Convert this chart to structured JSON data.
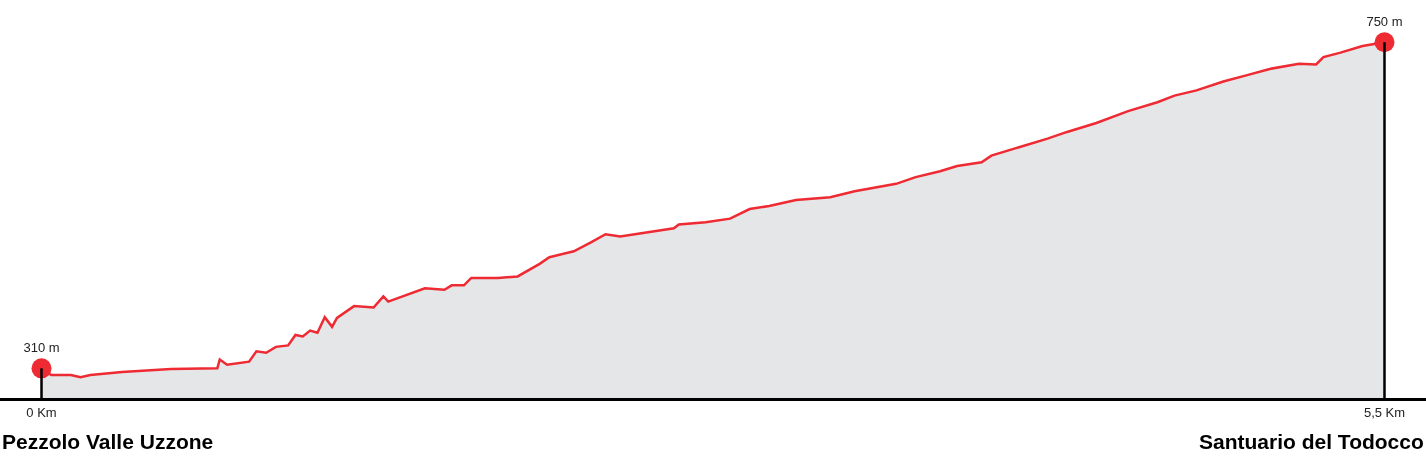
{
  "chart_data": {
    "type": "area",
    "x": [
      0,
      0.04,
      0.12,
      0.16,
      0.2,
      0.33,
      0.53,
      0.72,
      0.73,
      0.76,
      0.85,
      0.88,
      0.92,
      0.96,
      1.01,
      1.04,
      1.07,
      1.1,
      1.13,
      1.16,
      1.19,
      1.21,
      1.28,
      1.36,
      1.4,
      1.42,
      1.57,
      1.65,
      1.68,
      1.73,
      1.76,
      1.84,
      1.87,
      1.95,
      2.04,
      2.08,
      2.18,
      2.25,
      2.31,
      2.37,
      2.59,
      2.61,
      2.72,
      2.82,
      2.9,
      2.98,
      3.09,
      3.23,
      3.33,
      3.5,
      3.58,
      3.68,
      3.75,
      3.85,
      3.89,
      4.01,
      4.12,
      4.2,
      4.32,
      4.45,
      4.57,
      4.64,
      4.73,
      4.84,
      4.93,
      5.03,
      5.15,
      5.22,
      5.25,
      5.32,
      5.41,
      5.5
    ],
    "series": [
      {
        "color": "#ee2a33",
        "values": [
          310,
          301,
          301,
          298,
          301,
          305,
          309,
          310,
          322,
          315,
          319,
          333,
          331,
          339,
          341,
          355,
          353,
          361,
          358,
          379,
          366,
          378,
          394,
          392,
          407,
          400,
          418,
          416,
          422,
          422,
          432,
          432,
          432,
          434,
          451,
          460,
          468,
          480,
          491,
          488,
          499,
          504,
          507,
          512,
          525,
          529,
          537,
          541,
          549,
          559,
          568,
          576,
          583,
          588,
          597,
          609,
          620,
          629,
          641,
          657,
          669,
          678,
          685,
          697,
          705,
          714,
          721,
          720,
          730,
          736,
          745,
          750
        ],
        "value_labels": [
          "310 m",
          null,
          null,
          null,
          null,
          null,
          null,
          null,
          null,
          null,
          null,
          null,
          null,
          null,
          null,
          null,
          null,
          null,
          null,
          null,
          null,
          null,
          null,
          null,
          null,
          null,
          null,
          null,
          null,
          null,
          null,
          null,
          null,
          null,
          null,
          null,
          null,
          null,
          null,
          null,
          null,
          null,
          null,
          null,
          null,
          null,
          null,
          null,
          null,
          null,
          null,
          null,
          null,
          null,
          null,
          null,
          null,
          null,
          null,
          null,
          null,
          null,
          null,
          null,
          null,
          null,
          null,
          null,
          null,
          null,
          null,
          "750 m"
        ]
      }
    ],
    "xlim": [
      -0.17,
      5.67
    ],
    "ylim": [
      270,
      807
    ],
    "xticks": [
      {
        "value": 0,
        "label": "0 Km"
      },
      {
        "value": 5.5,
        "label": "5,5 Km"
      }
    ],
    "tick_labels": "x",
    "legend": false,
    "annotations": [
      "Pezzolo Valle Uzzone",
      "Santuario del Todocco"
    ]
  }
}
